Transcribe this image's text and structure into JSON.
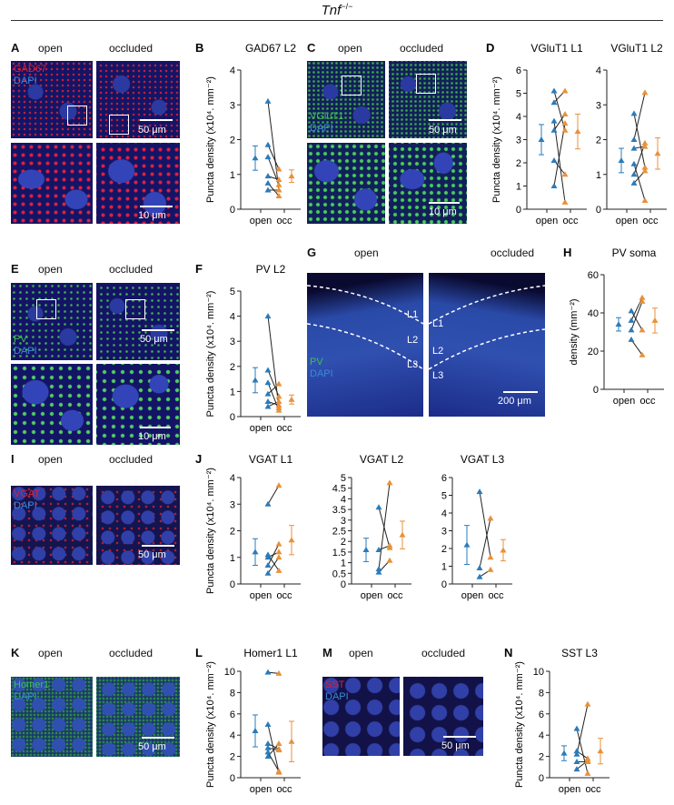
{
  "figure_title": "Tnf",
  "figure_title_sup": "−/−",
  "panels": {
    "A": {
      "letter": "A",
      "open": "open",
      "occluded": "occluded",
      "stain1": "GAD67",
      "stain2": "DAPI",
      "scale_top": "50 μm",
      "scale_bottom": "10 μm"
    },
    "C": {
      "letter": "C",
      "open": "open",
      "occluded": "occluded",
      "stain1": "VGluT1",
      "stain2": "DAPI",
      "scale_top": "50 μm",
      "scale_bottom": "10 μm"
    },
    "E": {
      "letter": "E",
      "open": "open",
      "occluded": "occluded",
      "stain1": "PV",
      "stain2": "DAPI",
      "scale_top": "50 μm",
      "scale_bottom": "10 μm"
    },
    "G": {
      "letter": "G",
      "open": "open",
      "occluded": "occluded",
      "stain1": "PV",
      "stain2": "DAPI",
      "scale": "200 μm",
      "layers": [
        "L1",
        "L2",
        "L3"
      ]
    },
    "I": {
      "letter": "I",
      "open": "open",
      "occluded": "occluded",
      "stain1": "VGAT",
      "stain2": "DAPI",
      "scale": "50 μm"
    },
    "K": {
      "letter": "K",
      "open": "open",
      "occluded": "occluded",
      "stain1": "Homer1",
      "stain2": "DAPI",
      "scale": "50 μm"
    },
    "M": {
      "letter": "M",
      "open": "open",
      "occluded": "occluded",
      "stain1": "SST",
      "stain2": "DAPI",
      "scale": "50 μm"
    }
  },
  "colors": {
    "open": "#2b7bb9",
    "occ": "#e8913a",
    "line": "#222222"
  },
  "chart_data": [
    {
      "id": "B",
      "letter": "B",
      "type": "scatter",
      "title": "GAD67 L2",
      "ylabel": "Puncta density (x10⁴. mm⁻²)",
      "categories": [
        "open",
        "occ"
      ],
      "ylim": [
        0,
        4
      ],
      "yticks": [
        0,
        1,
        2,
        3,
        4
      ],
      "pairs": [
        [
          3.1,
          0.55
        ],
        [
          1.85,
          1.15
        ],
        [
          1.5,
          0.7
        ],
        [
          0.95,
          0.85
        ],
        [
          0.75,
          0.38
        ],
        [
          0.55,
          0.55
        ]
      ],
      "mean": {
        "open": 1.47,
        "occ": 0.95
      },
      "err": {
        "open": 0.35,
        "occ": 0.18
      }
    },
    {
      "id": "D1",
      "letter": "D",
      "type": "scatter",
      "title": "VGluT1 L1",
      "ylabel": "Puncta density (x10⁴. mm⁻²)",
      "categories": [
        "open",
        "occ"
      ],
      "ylim": [
        0,
        6
      ],
      "yticks": [
        0,
        1,
        2,
        3,
        4,
        5,
        6
      ],
      "pairs": [
        [
          5.1,
          3.4
        ],
        [
          4.6,
          5.1
        ],
        [
          3.4,
          4.1
        ],
        [
          2.1,
          1.5
        ],
        [
          1.0,
          3.7
        ],
        [
          3.8,
          0.3
        ]
      ],
      "mean": {
        "open": 3.0,
        "occ": 3.35
      },
      "err": {
        "open": 0.65,
        "occ": 0.75
      }
    },
    {
      "id": "D2",
      "letter": "",
      "type": "scatter",
      "title": "VGluT1 L2",
      "ylabel": "",
      "categories": [
        "open",
        "occ"
      ],
      "ylim": [
        0,
        4
      ],
      "yticks": [
        0,
        1,
        2,
        3,
        4
      ],
      "pairs": [
        [
          2.75,
          1.2
        ],
        [
          2.0,
          3.35
        ],
        [
          1.75,
          1.8
        ],
        [
          1.3,
          0.25
        ],
        [
          1.0,
          1.9
        ],
        [
          0.75,
          1.1
        ]
      ],
      "mean": {
        "open": 1.4,
        "occ": 1.6
      },
      "err": {
        "open": 0.35,
        "occ": 0.45
      }
    },
    {
      "id": "F",
      "letter": "F",
      "type": "scatter",
      "title": "PV L2",
      "ylabel": "Puncta density (x10⁴. mm⁻²)",
      "categories": [
        "open",
        "occ"
      ],
      "ylim": [
        0,
        5
      ],
      "yticks": [
        0,
        1,
        2,
        3,
        4,
        5
      ],
      "pairs": [
        [
          4.0,
          0.35
        ],
        [
          1.85,
          0.8
        ],
        [
          1.35,
          0.25
        ],
        [
          0.9,
          1.3
        ],
        [
          0.6,
          0.45
        ],
        [
          0.4,
          0.6
        ]
      ],
      "mean": {
        "open": 1.45,
        "occ": 0.68
      },
      "err": {
        "open": 0.5,
        "occ": 0.18
      }
    },
    {
      "id": "H",
      "letter": "H",
      "type": "scatter",
      "title": "PV soma",
      "ylabel": "density (mm⁻²)",
      "categories": [
        "open",
        "occ"
      ],
      "ylim": [
        0,
        60
      ],
      "yticks": [
        0,
        20,
        40,
        60
      ],
      "pairs": [
        [
          41,
          31
        ],
        [
          36,
          48
        ],
        [
          31,
          46
        ],
        [
          26,
          18
        ]
      ],
      "mean": {
        "open": 34,
        "occ": 36
      },
      "err": {
        "open": 3.5,
        "occ": 6.5
      }
    },
    {
      "id": "J1",
      "letter": "J",
      "type": "scatter",
      "title": "VGAT L1",
      "ylabel": "Puncta density (x10⁴. mm⁻²)",
      "categories": [
        "open",
        "occ"
      ],
      "ylim": [
        0,
        4
      ],
      "yticks": [
        0,
        1,
        2,
        3,
        4
      ],
      "pairs": [
        [
          3.0,
          3.7
        ],
        [
          1.1,
          0.5
        ],
        [
          1.0,
          1.2
        ],
        [
          0.7,
          1.5
        ],
        [
          0.4,
          1.0
        ]
      ],
      "mean": {
        "open": 1.2,
        "occ": 1.65
      },
      "err": {
        "open": 0.5,
        "occ": 0.55
      }
    },
    {
      "id": "J2",
      "letter": "",
      "type": "scatter",
      "title": "VGAT L2",
      "ylabel": "",
      "categories": [
        "open",
        "occ"
      ],
      "ylim": [
        0,
        5
      ],
      "yticks": [
        0,
        0.5,
        1,
        1.5,
        2,
        2.5,
        3,
        3.5,
        4,
        4.5,
        5
      ],
      "pairs": [
        [
          3.6,
          1.7
        ],
        [
          1.6,
          1.8
        ],
        [
          0.7,
          4.75
        ],
        [
          0.55,
          1.1
        ]
      ],
      "mean": {
        "open": 1.6,
        "occ": 2.3
      },
      "err": {
        "open": 0.55,
        "occ": 0.65
      }
    },
    {
      "id": "J3",
      "letter": "",
      "type": "scatter",
      "title": "VGAT L3",
      "ylabel": "",
      "categories": [
        "open",
        "occ"
      ],
      "ylim": [
        0,
        6
      ],
      "yticks": [
        0,
        1,
        2,
        3,
        4,
        5,
        6
      ],
      "pairs": [
        [
          5.2,
          1.5
        ],
        [
          0.9,
          3.7
        ],
        [
          0.4,
          0.8
        ]
      ],
      "mean": {
        "open": 2.2,
        "occ": 1.9
      },
      "err": {
        "open": 1.1,
        "occ": 0.6
      }
    },
    {
      "id": "L",
      "letter": "L",
      "type": "scatter",
      "title": "Homer1 L1",
      "ylabel": "Puncta density (x10⁴. mm⁻²)",
      "categories": [
        "open",
        "occ"
      ],
      "ylim": [
        0,
        10
      ],
      "yticks": [
        0,
        2,
        4,
        6,
        8,
        10
      ],
      "pairs": [
        [
          9.9,
          9.8
        ],
        [
          5.0,
          0.5
        ],
        [
          3.2,
          2.7
        ],
        [
          2.8,
          2.6
        ],
        [
          2.4,
          0.6
        ],
        [
          2.0,
          3.2
        ]
      ],
      "mean": {
        "open": 4.4,
        "occ": 3.4
      },
      "err": {
        "open": 1.5,
        "occ": 1.9
      }
    },
    {
      "id": "N",
      "letter": "N",
      "type": "scatter",
      "title": "SST L3",
      "ylabel": "Puncta density (x10⁴. mm⁻²)",
      "categories": [
        "open",
        "occ"
      ],
      "ylim": [
        0,
        10
      ],
      "yticks": [
        0,
        2,
        4,
        6,
        8,
        10
      ],
      "pairs": [
        [
          4.6,
          0.4
        ],
        [
          2.5,
          1.8
        ],
        [
          2.2,
          6.9
        ],
        [
          1.5,
          1.5
        ],
        [
          0.8,
          1.6
        ]
      ],
      "mean": {
        "open": 2.3,
        "occ": 2.5
      },
      "err": {
        "open": 0.7,
        "occ": 1.2
      }
    }
  ]
}
